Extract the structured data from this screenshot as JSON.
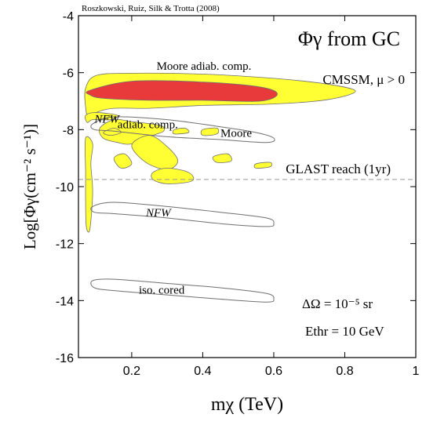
{
  "credit": "Roszkowski, Ruiz, Silk & Trotta (2008)",
  "chart_data": {
    "type": "contour",
    "title": "Φγ from GC",
    "xlabel": "mχ (TeV)",
    "ylabel": "Log[Φγ(cm⁻² s⁻¹)]",
    "xlim": [
      0.05,
      1.0
    ],
    "ylim": [
      -16,
      -4
    ],
    "xticks": [
      "0.2",
      "0.4",
      "0.6",
      "0.8",
      "1"
    ],
    "yticks": [
      "-4",
      "-6",
      "-8",
      "-10",
      "-12",
      "-14",
      "-16"
    ],
    "model_label": "CMSSM, μ > 0",
    "reference_line": {
      "label": "GLAST reach (1yr)",
      "y": -9.75,
      "style": "dashed"
    },
    "params": [
      "ΔΩ = 10⁻⁵ sr",
      "Ethr = 10 GeV"
    ],
    "colors": {
      "inner_region": "#e83a3a",
      "outer_region": "#ffff33",
      "outline": "#707070",
      "reference": "#999999"
    },
    "regions": [
      {
        "label": "Moore adiab. comp.",
        "fill": "outer",
        "points": [
          [
            0.07,
            -6.55
          ],
          [
            0.1,
            -6.1
          ],
          [
            0.2,
            -6.02
          ],
          [
            0.4,
            -6.05
          ],
          [
            0.6,
            -6.2
          ],
          [
            0.75,
            -6.4
          ],
          [
            0.83,
            -6.65
          ],
          [
            0.75,
            -6.95
          ],
          [
            0.6,
            -7.1
          ],
          [
            0.4,
            -7.15
          ],
          [
            0.25,
            -7.25
          ],
          [
            0.15,
            -7.25
          ],
          [
            0.1,
            -7.4
          ],
          [
            0.078,
            -7.6
          ],
          [
            0.07,
            -7.2
          ]
        ]
      },
      {
        "label": "",
        "fill": "inner",
        "points": [
          [
            0.082,
            -6.62
          ],
          [
            0.2,
            -6.3
          ],
          [
            0.4,
            -6.33
          ],
          [
            0.56,
            -6.5
          ],
          [
            0.61,
            -6.75
          ],
          [
            0.56,
            -7.0
          ],
          [
            0.4,
            -6.97
          ],
          [
            0.25,
            -6.97
          ],
          [
            0.12,
            -6.9
          ],
          [
            0.082,
            -6.78
          ]
        ]
      },
      {
        "label": "",
        "fill": "outer",
        "points": [
          [
            0.07,
            -7.5
          ],
          [
            0.1,
            -7.4
          ],
          [
            0.16,
            -7.5
          ],
          [
            0.14,
            -7.65
          ],
          [
            0.09,
            -7.65
          ],
          [
            0.075,
            -7.75
          ]
        ]
      },
      {
        "label": "",
        "fill": "outer",
        "points": [
          [
            0.07,
            -8.3
          ],
          [
            0.09,
            -8.5
          ],
          [
            0.085,
            -9.2
          ],
          [
            0.09,
            -10.2
          ],
          [
            0.082,
            -11.5
          ],
          [
            0.072,
            -11.4
          ],
          [
            0.07,
            -10.5
          ],
          [
            0.07,
            -9.5
          ]
        ]
      },
      {
        "label": "",
        "fill": "outer",
        "points": [
          [
            0.11,
            -7.95
          ],
          [
            0.15,
            -7.65
          ],
          [
            0.2,
            -7.72
          ],
          [
            0.28,
            -7.85
          ],
          [
            0.29,
            -8.05
          ],
          [
            0.26,
            -8.2
          ],
          [
            0.2,
            -8.5
          ],
          [
            0.16,
            -8.45
          ],
          [
            0.12,
            -8.3
          ]
        ]
      },
      {
        "label": "",
        "fill": "outer",
        "points": [
          [
            0.2,
            -8.55
          ],
          [
            0.25,
            -8.2
          ],
          [
            0.3,
            -8.6
          ],
          [
            0.33,
            -9.1
          ],
          [
            0.3,
            -9.4
          ],
          [
            0.24,
            -9.15
          ]
        ]
      },
      {
        "label": "",
        "fill": "outer",
        "points": [
          [
            0.15,
            -9.0
          ],
          [
            0.18,
            -8.85
          ],
          [
            0.2,
            -9.2
          ],
          [
            0.17,
            -9.35
          ]
        ]
      },
      {
        "label": "",
        "fill": "outer",
        "points": [
          [
            0.26,
            -9.5
          ],
          [
            0.3,
            -9.35
          ],
          [
            0.36,
            -9.5
          ],
          [
            0.37,
            -9.8
          ],
          [
            0.3,
            -9.9
          ],
          [
            0.26,
            -9.75
          ]
        ]
      },
      {
        "label": "",
        "fill": "outer",
        "points": [
          [
            0.4,
            -8.0
          ],
          [
            0.44,
            -7.95
          ],
          [
            0.44,
            -8.15
          ],
          [
            0.4,
            -8.2
          ]
        ]
      },
      {
        "label": "",
        "fill": "outer",
        "points": [
          [
            0.43,
            -8.95
          ],
          [
            0.47,
            -8.85
          ],
          [
            0.48,
            -9.1
          ],
          [
            0.44,
            -9.15
          ]
        ]
      },
      {
        "label": "",
        "fill": "outer",
        "points": [
          [
            0.32,
            -8.0
          ],
          [
            0.35,
            -7.95
          ],
          [
            0.36,
            -8.1
          ],
          [
            0.32,
            -8.15
          ]
        ]
      },
      {
        "label": "",
        "fill": "outer",
        "points": [
          [
            0.55,
            -9.2
          ],
          [
            0.59,
            -9.15
          ],
          [
            0.59,
            -9.3
          ],
          [
            0.55,
            -9.35
          ]
        ]
      },
      {
        "label": "",
        "fill": "outer",
        "points": [
          [
            0.12,
            -8.1
          ],
          [
            0.15,
            -7.95
          ],
          [
            0.17,
            -8.1
          ],
          [
            0.14,
            -8.2
          ]
        ]
      },
      {
        "label": "NFW adiab. comp.",
        "fill": "none",
        "points": [
          [
            0.09,
            -7.8
          ],
          [
            0.15,
            -7.55
          ],
          [
            0.3,
            -7.65
          ],
          [
            0.45,
            -7.9
          ],
          [
            0.55,
            -8.1
          ],
          [
            0.6,
            -8.3
          ],
          [
            0.58,
            -8.45
          ],
          [
            0.45,
            -8.35
          ],
          [
            0.3,
            -8.25
          ],
          [
            0.15,
            -8.05
          ],
          [
            0.095,
            -8.0
          ]
        ]
      },
      {
        "label": "NFW",
        "fill": "none",
        "points": [
          [
            0.09,
            -10.7
          ],
          [
            0.15,
            -10.55
          ],
          [
            0.3,
            -10.7
          ],
          [
            0.45,
            -10.9
          ],
          [
            0.58,
            -11.1
          ],
          [
            0.6,
            -11.3
          ],
          [
            0.58,
            -11.4
          ],
          [
            0.45,
            -11.3
          ],
          [
            0.3,
            -11.1
          ],
          [
            0.15,
            -10.95
          ],
          [
            0.095,
            -10.9
          ]
        ]
      },
      {
        "label": "iso. cored",
        "fill": "none",
        "points": [
          [
            0.09,
            -13.3
          ],
          [
            0.15,
            -13.25
          ],
          [
            0.3,
            -13.4
          ],
          [
            0.45,
            -13.55
          ],
          [
            0.58,
            -13.75
          ],
          [
            0.6,
            -13.95
          ],
          [
            0.58,
            -14.05
          ],
          [
            0.45,
            -13.95
          ],
          [
            0.3,
            -13.8
          ],
          [
            0.15,
            -13.65
          ],
          [
            0.095,
            -13.55
          ]
        ]
      }
    ],
    "region_labels": [
      {
        "text": "Moore adiab. comp.",
        "x": 0.27,
        "y": -5.9
      },
      {
        "text": "NFW",
        "x": 0.095,
        "y": -7.75,
        "italic": true
      },
      {
        "text": "adiab. comp.",
        "x": 0.16,
        "y": -7.95
      },
      {
        "text": "Moore",
        "x": 0.45,
        "y": -8.25
      },
      {
        "text": "NFW",
        "x": 0.24,
        "y": -11.05,
        "italic": true
      },
      {
        "text": "iso. cored",
        "x": 0.22,
        "y": -13.75
      }
    ]
  }
}
